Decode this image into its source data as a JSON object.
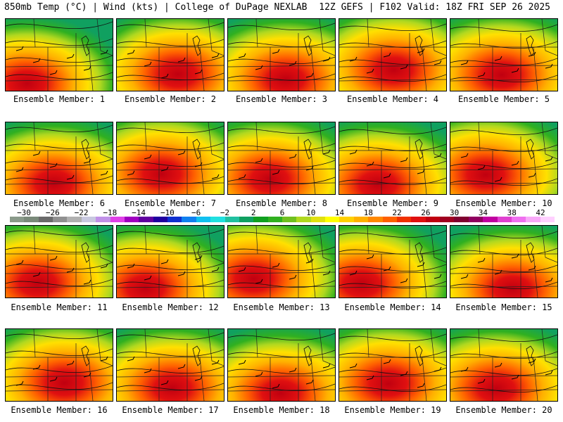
{
  "header": {
    "left_text": "850mb Temp (°C) | Wind (kts) | College of DuPage NEXLAB",
    "right_text": "12Z GEFS | F102 Valid: 18Z FRI SEP 26 2025"
  },
  "members": [
    "Ensemble Member: 1",
    "Ensemble Member: 2",
    "Ensemble Member: 3",
    "Ensemble Member: 4",
    "Ensemble Member: 5",
    "Ensemble Member: 6",
    "Ensemble Member: 7",
    "Ensemble Member: 8",
    "Ensemble Member: 9",
    "Ensemble Member: 10",
    "Ensemble Member: 11",
    "Ensemble Member: 12",
    "Ensemble Member: 13",
    "Ensemble Member: 14",
    "Ensemble Member: 15",
    "Ensemble Member: 16",
    "Ensemble Member: 17",
    "Ensemble Member: 18",
    "Ensemble Member: 19",
    "Ensemble Member: 20"
  ],
  "colorbar": {
    "tick_labels": [
      "−30",
      "−26",
      "−22",
      "−18",
      "−14",
      "−10",
      "−6",
      "−2",
      "2",
      "6",
      "10",
      "14",
      "18",
      "22",
      "26",
      "30",
      "34",
      "38",
      "42"
    ],
    "colors": [
      "#8a9a8a",
      "#7a8a7a",
      "#6a6a6a",
      "#909090",
      "#b0b0b0",
      "#c8c8e0",
      "#c090e8",
      "#e040e8",
      "#a000c0",
      "#6000a0",
      "#2000a0",
      "#1030d0",
      "#1080f0",
      "#10c0f0",
      "#20e0e0",
      "#20c0a0",
      "#10a060",
      "#10a020",
      "#30b020",
      "#70c020",
      "#b0d820",
      "#e0e010",
      "#ffff00",
      "#ffd000",
      "#ffb000",
      "#ff8800",
      "#ff6000",
      "#f03000",
      "#e01010",
      "#c00010",
      "#a00020",
      "#800030",
      "#900060",
      "#c000a0",
      "#e040d0",
      "#f070f0",
      "#f8a8f8",
      "#ffd0ff"
    ]
  }
}
